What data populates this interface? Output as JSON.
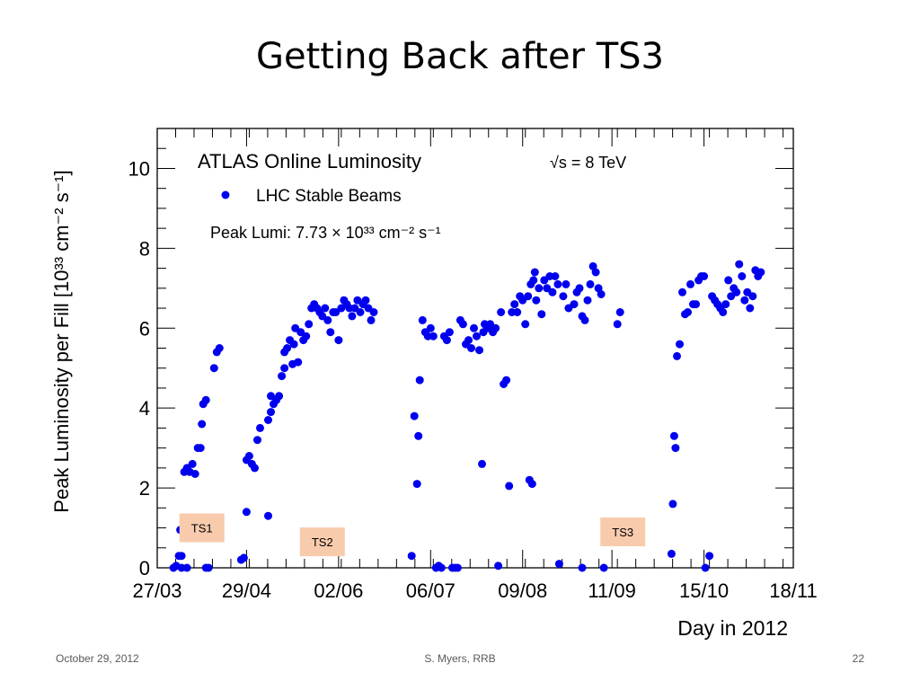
{
  "slide": {
    "title": "Getting Back after TS3",
    "footer_date": "October 29, 2012",
    "footer_author": "S. Myers, RRB",
    "footer_page": "22"
  },
  "colors": {
    "marker": "#0000ee",
    "label_box": "#f8cbad"
  },
  "chart_data": {
    "type": "scatter",
    "title": "ATLAS Online Luminosity",
    "energy_label": "√s = 8 TeV",
    "legend": "LHC Stable Beams",
    "peak_label": "Peak Lumi: 7.73 × 10³³ cm⁻² s⁻¹",
    "xlabel": "Day in 2012",
    "ylabel": "Peak Luminosity per Fill [10³³ cm⁻² s⁻¹]",
    "xlim": [
      0,
      235
    ],
    "ylim": [
      0,
      11
    ],
    "x_ticks": [
      {
        "label": "27/03",
        "day": 0
      },
      {
        "label": "29/04",
        "day": 33
      },
      {
        "label": "02/06",
        "day": 67
      },
      {
        "label": "06/07",
        "day": 101
      },
      {
        "label": "09/08",
        "day": 135
      },
      {
        "label": "11/09",
        "day": 168
      },
      {
        "label": "15/10",
        "day": 202
      },
      {
        "label": "18/11",
        "day": 236
      }
    ],
    "y_ticks": [
      0,
      2,
      4,
      6,
      8,
      10
    ],
    "annotations": [
      {
        "label": "TS1",
        "day": 16.5,
        "y": 1.0
      },
      {
        "label": "TS2",
        "day": 61,
        "y": 0.65
      },
      {
        "label": "TS3",
        "day": 172,
        "y": 0.9
      }
    ],
    "series": [
      {
        "points": [
          [
            6,
            0.0
          ],
          [
            7,
            0.05
          ],
          [
            8,
            0.3
          ],
          [
            9,
            0.3
          ],
          [
            8.5,
            0.95
          ],
          [
            9.5,
            1.0
          ],
          [
            10,
            1.1
          ],
          [
            9,
            0.0
          ],
          [
            11,
            0.0
          ],
          [
            10,
            2.4
          ],
          [
            11,
            2.5
          ],
          [
            12,
            2.4
          ],
          [
            13,
            2.6
          ],
          [
            14,
            2.35
          ],
          [
            15,
            3.0
          ],
          [
            16,
            3.0
          ],
          [
            16.5,
            3.6
          ],
          [
            17,
            4.1
          ],
          [
            18,
            4.2
          ],
          [
            18,
            0.0
          ],
          [
            19,
            0.0
          ],
          [
            21,
            5.0
          ],
          [
            22,
            5.4
          ],
          [
            23,
            5.5
          ],
          [
            31,
            0.2
          ],
          [
            32,
            0.25
          ],
          [
            33,
            1.4
          ],
          [
            33,
            2.7
          ],
          [
            34,
            2.8
          ],
          [
            35,
            2.6
          ],
          [
            36,
            2.5
          ],
          [
            37,
            3.2
          ],
          [
            38,
            3.5
          ],
          [
            41,
            1.3
          ],
          [
            41,
            3.7
          ],
          [
            42,
            3.9
          ],
          [
            42,
            4.3
          ],
          [
            43,
            4.1
          ],
          [
            44,
            4.2
          ],
          [
            45,
            4.3
          ],
          [
            46,
            4.8
          ],
          [
            47,
            5.0
          ],
          [
            47,
            5.4
          ],
          [
            48,
            5.5
          ],
          [
            49,
            5.7
          ],
          [
            50,
            5.1
          ],
          [
            50.5,
            5.6
          ],
          [
            51,
            6.0
          ],
          [
            52,
            5.15
          ],
          [
            53,
            5.9
          ],
          [
            54,
            5.7
          ],
          [
            55,
            5.8
          ],
          [
            56,
            6.1
          ],
          [
            57,
            6.5
          ],
          [
            58,
            6.6
          ],
          [
            59,
            6.5
          ],
          [
            60,
            6.4
          ],
          [
            61,
            6.3
          ],
          [
            62,
            6.5
          ],
          [
            63,
            6.2
          ],
          [
            64,
            5.9
          ],
          [
            65,
            6.4
          ],
          [
            66,
            6.4
          ],
          [
            67,
            5.7
          ],
          [
            68,
            6.5
          ],
          [
            69,
            6.7
          ],
          [
            70,
            6.6
          ],
          [
            71,
            6.5
          ],
          [
            72,
            6.3
          ],
          [
            73,
            6.5
          ],
          [
            74,
            6.7
          ],
          [
            75,
            6.4
          ],
          [
            76,
            6.6
          ],
          [
            77,
            6.7
          ],
          [
            78,
            6.5
          ],
          [
            79,
            6.2
          ],
          [
            80,
            6.4
          ],
          [
            94,
            0.3
          ],
          [
            95,
            3.8
          ],
          [
            96,
            2.1
          ],
          [
            96.5,
            3.3
          ],
          [
            97,
            4.7
          ],
          [
            98,
            6.2
          ],
          [
            99,
            5.9
          ],
          [
            100,
            5.8
          ],
          [
            101,
            6.0
          ],
          [
            102,
            5.8
          ],
          [
            103,
            0.0
          ],
          [
            104,
            0.05
          ],
          [
            105,
            0.0
          ],
          [
            106,
            5.8
          ],
          [
            107,
            5.7
          ],
          [
            108,
            5.9
          ],
          [
            109,
            0.0
          ],
          [
            110,
            0.0
          ],
          [
            111,
            0.0
          ],
          [
            112,
            6.2
          ],
          [
            113,
            6.1
          ],
          [
            114,
            5.6
          ],
          [
            115,
            5.7
          ],
          [
            116,
            5.5
          ],
          [
            117,
            6.0
          ],
          [
            118,
            5.8
          ],
          [
            119,
            5.45
          ],
          [
            120,
            2.6
          ],
          [
            120.5,
            5.9
          ],
          [
            121,
            6.1
          ],
          [
            122,
            6.0
          ],
          [
            123,
            6.1
          ],
          [
            124,
            5.9
          ],
          [
            125,
            6.0
          ],
          [
            126,
            0.05
          ],
          [
            127,
            6.4
          ],
          [
            128,
            4.6
          ],
          [
            129,
            4.7
          ],
          [
            130,
            2.05
          ],
          [
            131,
            6.4
          ],
          [
            132,
            6.6
          ],
          [
            133,
            6.4
          ],
          [
            134,
            6.8
          ],
          [
            135,
            6.7
          ],
          [
            136,
            6.1
          ],
          [
            137,
            6.8
          ],
          [
            137.5,
            2.2
          ],
          [
            138,
            7.1
          ],
          [
            138.5,
            2.1
          ],
          [
            139,
            7.2
          ],
          [
            139.5,
            7.4
          ],
          [
            140,
            6.7
          ],
          [
            141,
            7.0
          ],
          [
            142,
            6.35
          ],
          [
            143,
            7.2
          ],
          [
            144,
            7.0
          ],
          [
            145,
            7.3
          ],
          [
            146,
            6.9
          ],
          [
            147,
            7.3
          ],
          [
            148,
            7.1
          ],
          [
            148.5,
            0.1
          ],
          [
            150,
            6.8
          ],
          [
            151,
            7.1
          ],
          [
            152,
            6.5
          ],
          [
            154,
            6.6
          ],
          [
            155,
            6.9
          ],
          [
            156,
            7.0
          ],
          [
            157,
            6.3
          ],
          [
            158,
            6.2
          ],
          [
            159,
            6.7
          ],
          [
            160,
            7.1
          ],
          [
            161,
            7.55
          ],
          [
            162,
            7.4
          ],
          [
            163,
            7.0
          ],
          [
            164,
            6.85
          ],
          [
            165,
            0.0
          ],
          [
            157,
            0.0
          ],
          [
            170,
            6.1
          ],
          [
            171,
            6.4
          ],
          [
            190,
            0.35
          ],
          [
            190.5,
            1.6
          ],
          [
            191,
            3.3
          ],
          [
            191.5,
            3.0
          ],
          [
            192,
            5.3
          ],
          [
            193,
            5.6
          ],
          [
            194,
            6.9
          ],
          [
            195,
            6.35
          ],
          [
            196,
            6.4
          ],
          [
            197,
            7.1
          ],
          [
            198,
            6.6
          ],
          [
            199,
            6.6
          ],
          [
            200,
            7.2
          ],
          [
            201,
            7.3
          ],
          [
            202,
            7.3
          ],
          [
            202.5,
            0.0
          ],
          [
            204,
            0.3
          ],
          [
            205,
            6.8
          ],
          [
            206,
            6.7
          ],
          [
            207,
            6.6
          ],
          [
            208,
            6.5
          ],
          [
            209,
            6.4
          ],
          [
            210,
            6.6
          ],
          [
            211,
            7.2
          ],
          [
            212,
            6.8
          ],
          [
            213,
            7.0
          ],
          [
            214,
            6.9
          ],
          [
            215,
            7.6
          ],
          [
            216,
            7.3
          ],
          [
            217,
            6.7
          ],
          [
            218,
            6.9
          ],
          [
            219,
            6.5
          ],
          [
            220,
            6.8
          ],
          [
            221,
            7.45
          ],
          [
            222,
            7.3
          ],
          [
            223,
            7.4
          ]
        ]
      }
    ]
  }
}
